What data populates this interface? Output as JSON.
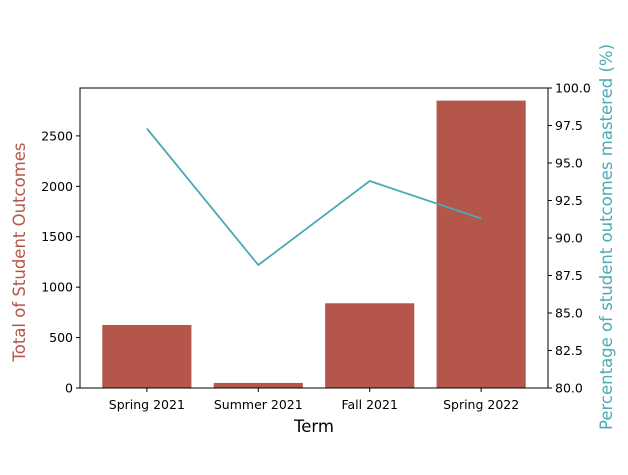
{
  "chart_data": {
    "type": "bar",
    "title": "",
    "xlabel": "Term",
    "ylabel": "Total of Student Outcomes",
    "ylabel_right": "Percentage of student outcomes mastered (%)",
    "categories": [
      "Spring 2021",
      "Summer 2021",
      "Fall 2021",
      "Spring 2022"
    ],
    "series": [
      {
        "type": "bar",
        "axis": "left",
        "color": "#b5564a",
        "values": [
          625,
          50,
          840,
          2850
        ]
      },
      {
        "type": "line",
        "axis": "right",
        "color": "#4aabb5",
        "values": [
          97.3,
          88.2,
          93.8,
          91.3
        ]
      }
    ],
    "ylim": [
      0,
      2975
    ],
    "ylim_right": [
      80.0,
      100.0
    ],
    "yticks": [
      0,
      500,
      1000,
      1500,
      2000,
      2500
    ],
    "yticks_right": [
      80.0,
      82.5,
      85.0,
      87.5,
      90.0,
      92.5,
      95.0,
      97.5,
      100.0
    ],
    "ytick_labels": [
      "0",
      "500",
      "1000",
      "1500",
      "2000",
      "2500"
    ],
    "ytick_labels_right": [
      "80.0",
      "82.5",
      "85.0",
      "87.5",
      "90.0",
      "92.5",
      "95.0",
      "97.5",
      "100.0"
    ],
    "grid": false,
    "legend": "none"
  }
}
